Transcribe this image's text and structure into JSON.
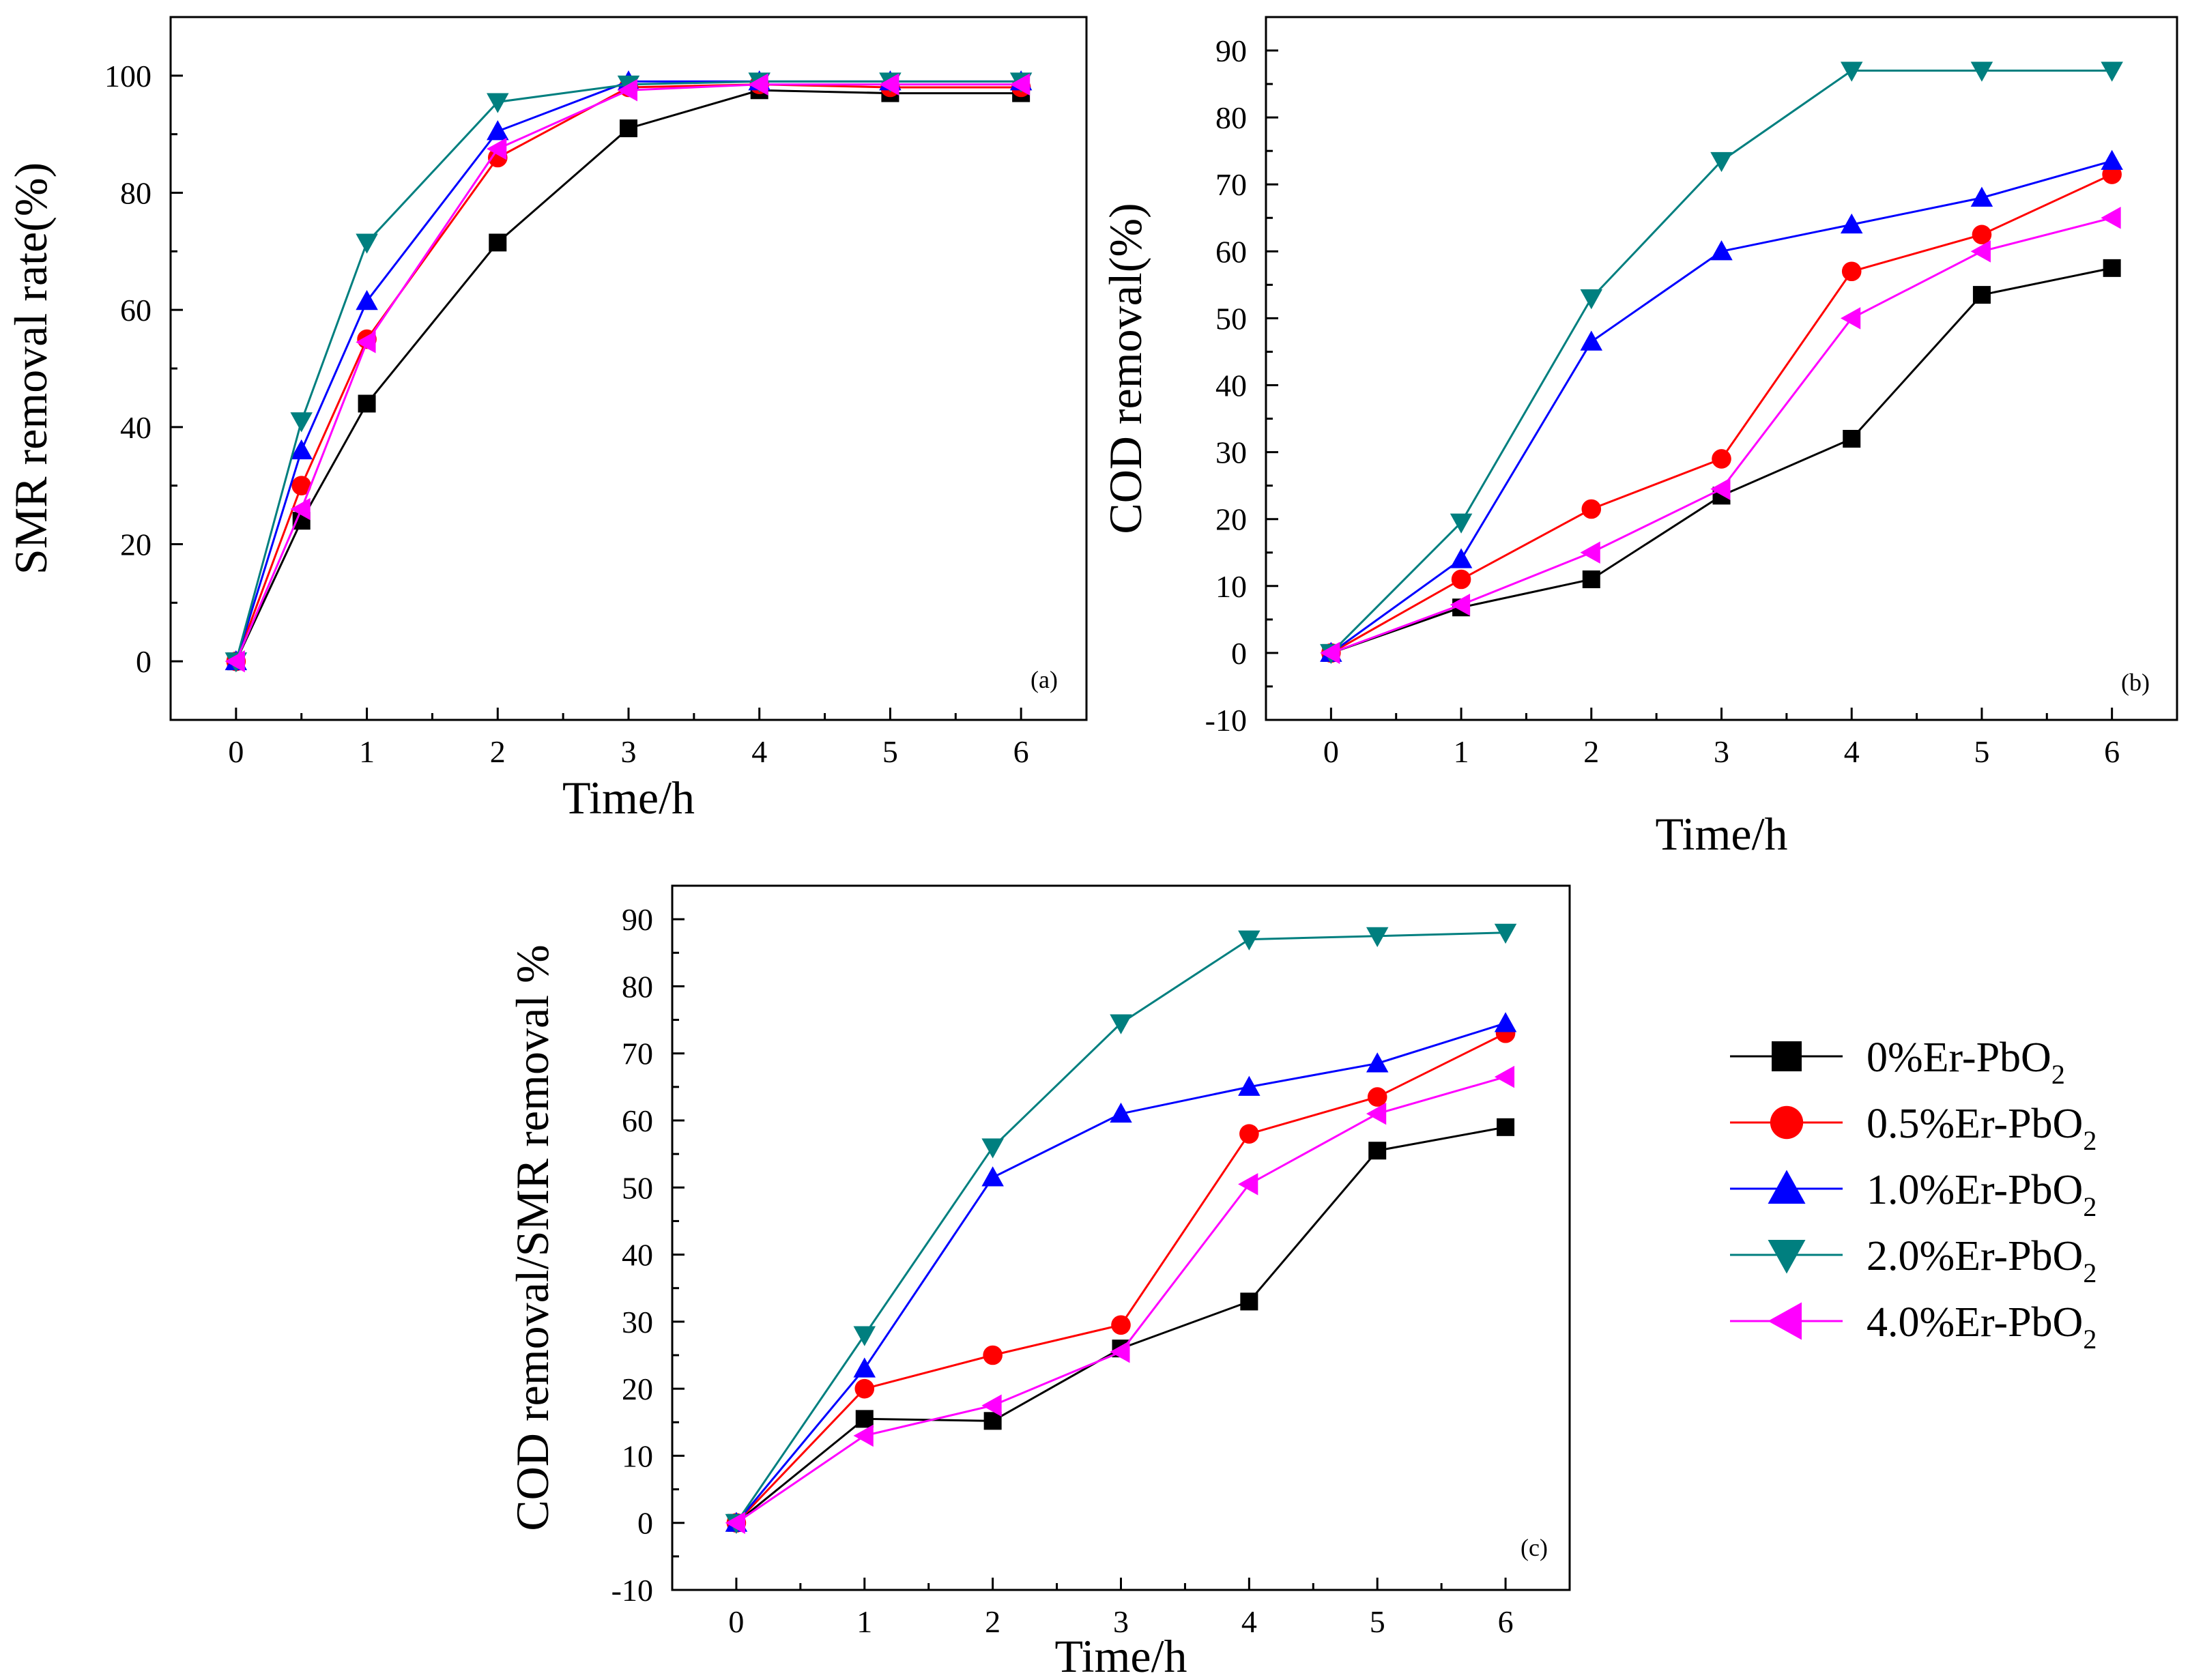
{
  "legend": {
    "entries": [
      {
        "prefix": "0%Er-PbO",
        "sub": "2",
        "color": "#000000",
        "marker": "square"
      },
      {
        "prefix": "0.5%Er-PbO",
        "sub": "2",
        "color": "#ff0000",
        "marker": "circle"
      },
      {
        "prefix": "1.0%Er-PbO",
        "sub": "2",
        "color": "#0000ff",
        "marker": "triangle-up"
      },
      {
        "prefix": "2.0%Er-PbO",
        "sub": "2",
        "color": "#007f7f",
        "marker": "triangle-down"
      },
      {
        "prefix": "4.0%Er-PbO",
        "sub": "2",
        "color": "#ff00ff",
        "marker": "triangle-left"
      }
    ]
  },
  "chart_data": [
    {
      "type": "line",
      "panel": "(a)",
      "xlabel": "Time/h",
      "ylabel": "SMR removal rate(%)",
      "xlim": [
        -0.5,
        6.5
      ],
      "ylim": [
        -10,
        110
      ],
      "xticks": [
        0,
        1,
        2,
        3,
        4,
        5,
        6
      ],
      "yticks": [
        0,
        20,
        40,
        60,
        80,
        100
      ],
      "x": [
        0,
        0.5,
        1,
        2,
        3,
        4,
        5,
        6
      ],
      "series": [
        {
          "name": "0%Er-PbO2",
          "values": [
            0,
            24,
            44,
            71.5,
            91,
            97.5,
            97,
            97
          ]
        },
        {
          "name": "0.5%Er-PbO2",
          "values": [
            0,
            30,
            55,
            86,
            98,
            98.5,
            98,
            98
          ]
        },
        {
          "name": "1.0%Er-PbO2",
          "values": [
            0,
            36,
            61.5,
            90.5,
            99,
            99,
            99,
            99
          ]
        },
        {
          "name": "2.0%Er-PbO2",
          "values": [
            0,
            41,
            71.5,
            95.5,
            98.5,
            99,
            99,
            99
          ]
        },
        {
          "name": "4.0%Er-PbO2",
          "values": [
            0,
            26,
            54.5,
            87.5,
            97.5,
            98.5,
            98.5,
            98.5
          ]
        }
      ]
    },
    {
      "type": "line",
      "panel": "(b)",
      "xlabel": "Time/h",
      "ylabel": "COD removal(%)",
      "xlim": [
        -0.5,
        6.5
      ],
      "ylim": [
        -10,
        95
      ],
      "xticks": [
        0,
        1,
        2,
        3,
        4,
        5,
        6
      ],
      "yticks": [
        -10,
        0,
        10,
        20,
        30,
        40,
        50,
        60,
        70,
        80,
        90
      ],
      "x": [
        0,
        1,
        2,
        3,
        4,
        5,
        6
      ],
      "series": [
        {
          "name": "0%Er-PbO2",
          "values": [
            0,
            6.8,
            11,
            23.5,
            32,
            53.5,
            57.5
          ]
        },
        {
          "name": "0.5%Er-PbO2",
          "values": [
            0,
            11,
            21.5,
            29,
            57,
            62.5,
            71.5
          ]
        },
        {
          "name": "1.0%Er-PbO2",
          "values": [
            0,
            14,
            46.5,
            60,
            64,
            68,
            73.5
          ]
        },
        {
          "name": "2.0%Er-PbO2",
          "values": [
            0,
            19.5,
            53,
            73.5,
            87,
            87,
            87
          ]
        },
        {
          "name": "4.0%Er-PbO2",
          "values": [
            0,
            7.2,
            15,
            24.5,
            50,
            60,
            65
          ]
        }
      ]
    },
    {
      "type": "line",
      "panel": "(c)",
      "xlabel": "Time/h",
      "ylabel": "COD removal/SMR removal %",
      "xlim": [
        -0.5,
        6.5
      ],
      "ylim": [
        -10,
        95
      ],
      "xticks": [
        0,
        1,
        2,
        3,
        4,
        5,
        6
      ],
      "yticks": [
        -10,
        0,
        10,
        20,
        30,
        40,
        50,
        60,
        70,
        80,
        90
      ],
      "x": [
        0,
        1,
        2,
        3,
        4,
        5,
        6
      ],
      "series": [
        {
          "name": "0%Er-PbO2",
          "values": [
            0,
            15.5,
            15.2,
            26,
            33,
            55.5,
            59
          ]
        },
        {
          "name": "0.5%Er-PbO2",
          "values": [
            0,
            20,
            25,
            29.5,
            58,
            63.5,
            73
          ]
        },
        {
          "name": "1.0%Er-PbO2",
          "values": [
            0,
            23,
            51.5,
            61,
            65,
            68.5,
            74.5
          ]
        },
        {
          "name": "2.0%Er-PbO2",
          "values": [
            0,
            28,
            56,
            74.5,
            87,
            87.5,
            88
          ]
        },
        {
          "name": "4.0%Er-PbO2",
          "values": [
            0,
            13,
            17.5,
            25.5,
            50.5,
            61,
            66.5
          ]
        }
      ]
    }
  ]
}
